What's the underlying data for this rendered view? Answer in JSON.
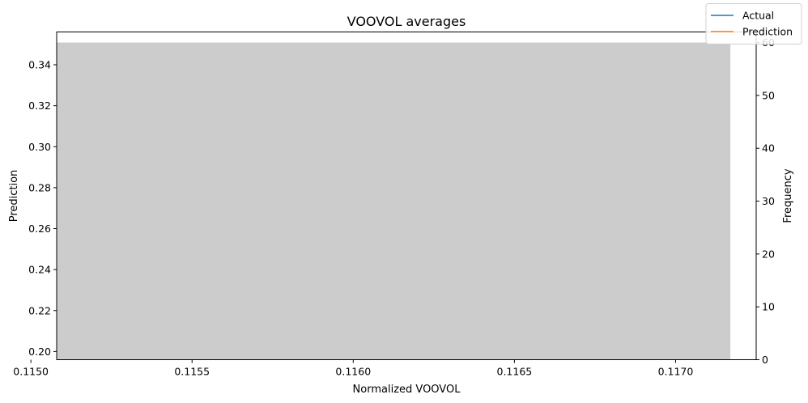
{
  "chart_data": {
    "type": "bar",
    "title": "VOOVOL averages",
    "xlabel": "Normalized VOOVOL",
    "ylabel_left": "Prediction",
    "ylabel_right": "Frequency",
    "xlim": [
      0.11508,
      0.11725
    ],
    "ylim_left": [
      0.196,
      0.356
    ],
    "ylim_right": [
      0,
      62
    ],
    "x_ticks": [
      "0.1150",
      "0.1155",
      "0.1160",
      "0.1165",
      "0.1170"
    ],
    "x_tick_values": [
      0.115,
      0.1155,
      0.116,
      0.1165,
      0.117
    ],
    "y_left_ticks": [
      "0.20",
      "0.22",
      "0.24",
      "0.26",
      "0.28",
      "0.30",
      "0.32",
      "0.34"
    ],
    "y_left_tick_values": [
      0.2,
      0.22,
      0.24,
      0.26,
      0.28,
      0.3,
      0.32,
      0.34
    ],
    "y_right_ticks": [
      "0",
      "10",
      "20",
      "30",
      "40",
      "50",
      "60"
    ],
    "y_right_tick_values": [
      0,
      10,
      20,
      30,
      40,
      50,
      60
    ],
    "histogram": {
      "bins": [
        {
          "x0": 0.11508,
          "x1": 0.11717,
          "count": 60
        }
      ],
      "color": "#cccccc"
    },
    "series": [
      {
        "name": "Actual",
        "color": "#1f77b4",
        "x": [],
        "y": []
      },
      {
        "name": "Prediction",
        "color": "#ff7f0e",
        "x": [],
        "y": []
      }
    ],
    "legend": {
      "position": "top-right",
      "entries": [
        {
          "label": "Actual",
          "color": "#1f77b4"
        },
        {
          "label": "Prediction",
          "color": "#ff7f0e"
        }
      ]
    },
    "grid": false
  }
}
